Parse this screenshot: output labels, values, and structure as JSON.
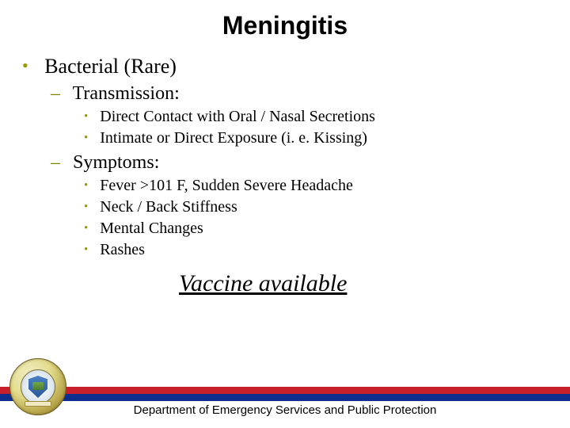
{
  "title": "Meningitis",
  "level1": {
    "item": "Bacterial (Rare)"
  },
  "transmission": {
    "heading": "Transmission:",
    "items": {
      "0": "Direct Contact with Oral / Nasal Secretions",
      "1": "Intimate or Direct Exposure (i. e. Kissing)"
    }
  },
  "symptoms": {
    "heading": "Symptoms:",
    "items": {
      "0": "Fever >101 F, Sudden Severe Headache",
      "1": "Neck / Back Stiffness",
      "2": "Mental Changes",
      "3": "Rashes"
    }
  },
  "vaccine_text": "Vaccine available",
  "footer_text": "Department of Emergency Services and Public Protection",
  "colors": {
    "bullet_color": "#999900",
    "stripe_red": "#c8202a",
    "stripe_blue": "#0c2f8f",
    "background": "#ffffff"
  },
  "fonts": {
    "title_family": "Arial",
    "title_size_pt": 24,
    "body_family": "Times New Roman",
    "l1_size_pt": 20,
    "l2_size_pt": 18,
    "l3_size_pt": 15,
    "footer_family": "Arial",
    "footer_size_pt": 11
  }
}
